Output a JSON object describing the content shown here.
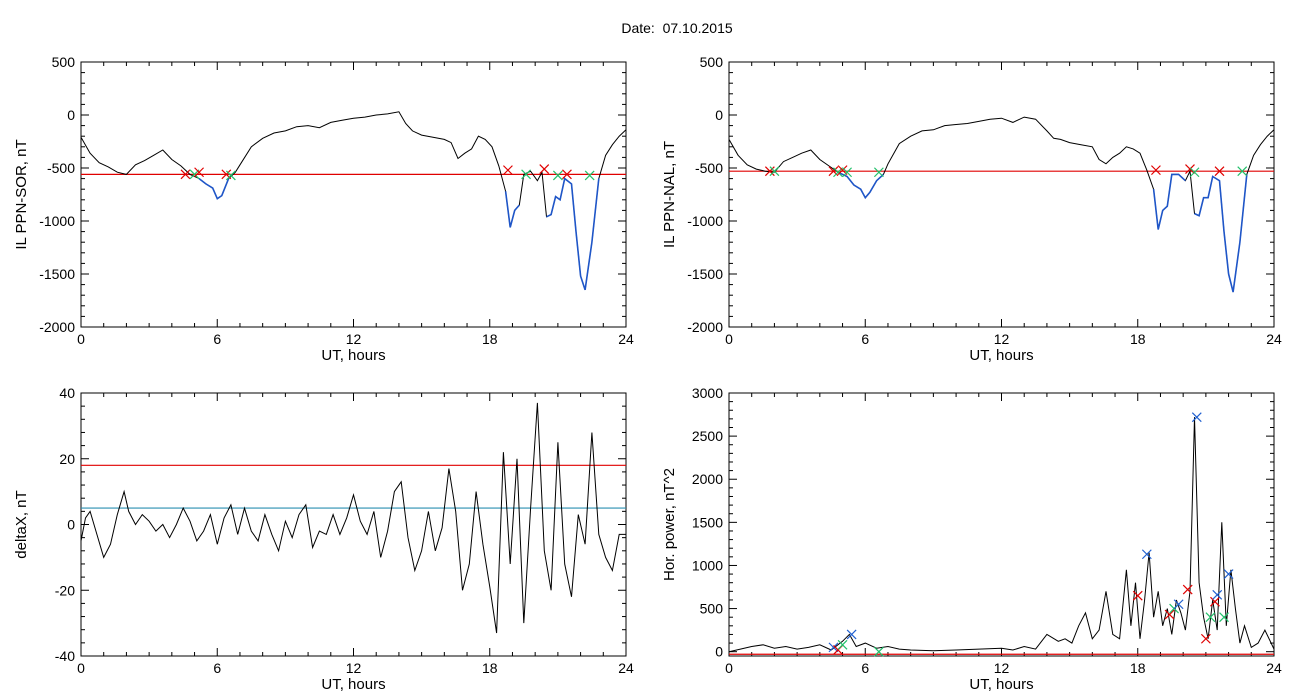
{
  "header": {
    "date_label": "Date:",
    "date_value": "07.10.2015"
  },
  "colors": {
    "trace": "#000000",
    "threshold": "#e00000",
    "event": "#1f56c8",
    "baseline": "#2a8fb0",
    "marker_red": "#e00000",
    "marker_green": "#22c06a",
    "marker_blue": "#2060d0"
  },
  "chart_data": [
    {
      "type": "line",
      "title": "",
      "xlabel": "UT, hours",
      "ylabel": "IL PPN-SOR, nT",
      "xlim": [
        0,
        24
      ],
      "ylim": [
        -2000,
        500
      ],
      "xticks": [
        0,
        6,
        12,
        18,
        24
      ],
      "yticks": [
        500,
        0,
        -500,
        -1000,
        -1500,
        -2000
      ],
      "grid": false,
      "threshold": -560,
      "series": [
        {
          "x": [
            0,
            0.4,
            0.8,
            1.2,
            1.6,
            2.0,
            2.4,
            2.8,
            3.2,
            3.6,
            4.0,
            4.4,
            4.8,
            5.2,
            5.5,
            5.8,
            6.0,
            6.2,
            6.5,
            6.8,
            7.0,
            7.5,
            8.0,
            8.5,
            9.0,
            9.5,
            10.0,
            10.5,
            11.0,
            11.5,
            12.0,
            12.5,
            13.0,
            13.5,
            14.0,
            14.3,
            14.6,
            15.0,
            15.5,
            16.0,
            16.3,
            16.6,
            16.9,
            17.2,
            17.5,
            17.8,
            18.1,
            18.4,
            18.7,
            18.9,
            19.1,
            19.3,
            19.5,
            19.8,
            20.1,
            20.3,
            20.5,
            20.7,
            20.9,
            21.1,
            21.3,
            21.6,
            21.8,
            22.0,
            22.2,
            22.5,
            22.8,
            23.1,
            23.4,
            23.7,
            24.0
          ],
          "y": [
            -210,
            -360,
            -450,
            -490,
            -540,
            -560,
            -470,
            -430,
            -380,
            -330,
            -420,
            -480,
            -560,
            -600,
            -650,
            -690,
            -790,
            -760,
            -600,
            -540,
            -470,
            -300,
            -220,
            -170,
            -150,
            -110,
            -100,
            -120,
            -70,
            -50,
            -30,
            -20,
            0,
            10,
            30,
            -80,
            -150,
            -190,
            -210,
            -230,
            -260,
            -410,
            -360,
            -320,
            -200,
            -230,
            -300,
            -480,
            -720,
            -1060,
            -900,
            -850,
            -560,
            -530,
            -620,
            -540,
            -960,
            -940,
            -770,
            -800,
            -600,
            -650,
            -1100,
            -1520,
            -1650,
            -1200,
            -600,
            -380,
            -280,
            -200,
            -140
          ]
        }
      ],
      "markers": [
        {
          "x": 4.6,
          "y": -560,
          "color": "red"
        },
        {
          "x": 5.0,
          "y": -560,
          "color": "green"
        },
        {
          "x": 5.2,
          "y": -540,
          "color": "red"
        },
        {
          "x": 6.4,
          "y": -560,
          "color": "red"
        },
        {
          "x": 6.6,
          "y": -570,
          "color": "green"
        },
        {
          "x": 18.8,
          "y": -520,
          "color": "red"
        },
        {
          "x": 19.6,
          "y": -560,
          "color": "green"
        },
        {
          "x": 20.4,
          "y": -510,
          "color": "red"
        },
        {
          "x": 21.0,
          "y": -570,
          "color": "green"
        },
        {
          "x": 21.4,
          "y": -560,
          "color": "red"
        },
        {
          "x": 22.4,
          "y": -570,
          "color": "green"
        }
      ]
    },
    {
      "type": "line",
      "title": "",
      "xlabel": "UT, hours",
      "ylabel": "IL PPN-NAL, nT",
      "xlim": [
        0,
        24
      ],
      "ylim": [
        -2000,
        500
      ],
      "xticks": [
        0,
        6,
        12,
        18,
        24
      ],
      "yticks": [
        500,
        0,
        -500,
        -1000,
        -1500,
        -2000
      ],
      "grid": false,
      "threshold": -530,
      "series": [
        {
          "x": [
            0,
            0.4,
            0.8,
            1.2,
            1.6,
            2.0,
            2.4,
            2.8,
            3.2,
            3.6,
            4.0,
            4.4,
            4.8,
            5.2,
            5.5,
            5.8,
            6.0,
            6.2,
            6.5,
            6.8,
            7.0,
            7.5,
            8.0,
            8.5,
            9.0,
            9.5,
            10.0,
            10.5,
            11.0,
            11.5,
            12.0,
            12.5,
            13.0,
            13.5,
            14.0,
            14.3,
            14.6,
            15.0,
            15.5,
            16.0,
            16.3,
            16.6,
            16.9,
            17.2,
            17.5,
            17.8,
            18.1,
            18.4,
            18.7,
            18.9,
            19.1,
            19.3,
            19.5,
            19.8,
            20.1,
            20.3,
            20.5,
            20.7,
            20.9,
            21.1,
            21.3,
            21.6,
            21.8,
            22.0,
            22.2,
            22.5,
            22.8,
            23.1,
            23.4,
            23.7,
            24.0
          ],
          "y": [
            -230,
            -380,
            -470,
            -510,
            -530,
            -540,
            -440,
            -400,
            -360,
            -330,
            -420,
            -480,
            -540,
            -580,
            -660,
            -700,
            -780,
            -730,
            -620,
            -560,
            -460,
            -270,
            -200,
            -150,
            -140,
            -100,
            -90,
            -80,
            -60,
            -40,
            -30,
            -70,
            -20,
            -40,
            -150,
            -220,
            -230,
            -260,
            -280,
            -300,
            -420,
            -460,
            -400,
            -360,
            -300,
            -320,
            -360,
            -520,
            -700,
            -1080,
            -900,
            -860,
            -560,
            -560,
            -620,
            -530,
            -930,
            -950,
            -780,
            -780,
            -580,
            -620,
            -1100,
            -1500,
            -1670,
            -1200,
            -560,
            -380,
            -280,
            -200,
            -140
          ]
        }
      ],
      "markers": [
        {
          "x": 1.8,
          "y": -530,
          "color": "red"
        },
        {
          "x": 2.0,
          "y": -530,
          "color": "green"
        },
        {
          "x": 4.6,
          "y": -530,
          "color": "red"
        },
        {
          "x": 4.8,
          "y": -540,
          "color": "green"
        },
        {
          "x": 5.0,
          "y": -520,
          "color": "red"
        },
        {
          "x": 5.2,
          "y": -540,
          "color": "green"
        },
        {
          "x": 6.6,
          "y": -540,
          "color": "green"
        },
        {
          "x": 18.8,
          "y": -520,
          "color": "red"
        },
        {
          "x": 20.3,
          "y": -510,
          "color": "red"
        },
        {
          "x": 20.5,
          "y": -540,
          "color": "green"
        },
        {
          "x": 21.6,
          "y": -530,
          "color": "red"
        },
        {
          "x": 22.6,
          "y": -530,
          "color": "green"
        }
      ]
    },
    {
      "type": "line",
      "title": "",
      "xlabel": "UT, hours",
      "ylabel": "deltaX, nT",
      "xlim": [
        0,
        24
      ],
      "ylim": [
        -40,
        40
      ],
      "xticks": [
        0,
        6,
        12,
        18,
        24
      ],
      "yticks": [
        40,
        20,
        0,
        -20,
        -40
      ],
      "grid": false,
      "threshold": 18,
      "baseline": 5,
      "series": [
        {
          "x": [
            0,
            0.2,
            0.4,
            0.7,
            1.0,
            1.3,
            1.6,
            1.9,
            2.1,
            2.4,
            2.7,
            3.0,
            3.3,
            3.6,
            3.9,
            4.2,
            4.5,
            4.8,
            5.1,
            5.4,
            5.7,
            6.0,
            6.3,
            6.6,
            6.9,
            7.2,
            7.5,
            7.8,
            8.1,
            8.4,
            8.7,
            9.0,
            9.3,
            9.6,
            9.9,
            10.2,
            10.5,
            10.8,
            11.1,
            11.4,
            11.7,
            12.0,
            12.3,
            12.6,
            12.9,
            13.2,
            13.5,
            13.8,
            14.1,
            14.4,
            14.7,
            15.0,
            15.3,
            15.6,
            15.9,
            16.2,
            16.5,
            16.8,
            17.1,
            17.4,
            17.7,
            18.0,
            18.3,
            18.6,
            18.9,
            19.2,
            19.5,
            19.8,
            20.1,
            20.4,
            20.7,
            21.0,
            21.3,
            21.6,
            21.9,
            22.2,
            22.5,
            22.8,
            23.1,
            23.4,
            23.7,
            24.0
          ],
          "y": [
            -5,
            2,
            4,
            -3,
            -10,
            -6,
            3,
            10,
            4,
            0,
            3,
            1,
            -2,
            0,
            -4,
            0,
            5,
            1,
            -5,
            -2,
            3,
            -6,
            2,
            6,
            -3,
            5,
            -2,
            -5,
            3,
            -3,
            -8,
            1,
            -4,
            3,
            6,
            -7,
            -2,
            -3,
            3,
            -3,
            2,
            9,
            1,
            -3,
            4,
            -10,
            -2,
            10,
            13,
            -4,
            -14,
            -8,
            4,
            -8,
            -1,
            17,
            4,
            -20,
            -12,
            10,
            -6,
            -19,
            -33,
            22,
            -12,
            20,
            -30,
            5,
            37,
            -8,
            -20,
            25,
            -12,
            -22,
            3,
            -6,
            28,
            -3,
            -10,
            -14,
            -3,
            -3
          ]
        }
      ],
      "markers": []
    },
    {
      "type": "line",
      "title": "",
      "xlabel": "UT, hours",
      "ylabel": "Hor. power, nT^2",
      "xlim": [
        0,
        24
      ],
      "ylim": [
        -50,
        3000
      ],
      "xticks": [
        0,
        6,
        12,
        18,
        24
      ],
      "yticks": [
        3000,
        2500,
        2000,
        1500,
        1000,
        500,
        0
      ],
      "grid": false,
      "threshold": -30,
      "series": [
        {
          "x": [
            0,
            0.5,
            1.0,
            1.5,
            2.0,
            2.5,
            3.0,
            3.5,
            4.0,
            4.5,
            5.0,
            5.3,
            5.6,
            6.0,
            6.5,
            7.0,
            7.5,
            8.0,
            9.0,
            10.0,
            11.0,
            12.0,
            12.5,
            13.0,
            13.5,
            14.0,
            14.5,
            14.8,
            15.1,
            15.4,
            15.7,
            16.0,
            16.3,
            16.6,
            16.9,
            17.2,
            17.5,
            17.7,
            17.9,
            18.1,
            18.3,
            18.5,
            18.7,
            18.9,
            19.1,
            19.3,
            19.5,
            19.7,
            19.9,
            20.1,
            20.3,
            20.5,
            20.7,
            20.9,
            21.1,
            21.3,
            21.5,
            21.7,
            21.9,
            22.1,
            22.3,
            22.5,
            22.7,
            23.0,
            23.3,
            23.6,
            24.0
          ],
          "y": [
            0,
            30,
            60,
            80,
            40,
            60,
            30,
            50,
            80,
            20,
            120,
            200,
            60,
            100,
            40,
            60,
            30,
            20,
            10,
            20,
            30,
            40,
            20,
            60,
            30,
            200,
            120,
            150,
            100,
            300,
            450,
            150,
            250,
            700,
            200,
            150,
            950,
            300,
            800,
            150,
            600,
            1150,
            400,
            700,
            300,
            500,
            200,
            600,
            450,
            250,
            700,
            2720,
            800,
            400,
            150,
            600,
            250,
            1500,
            300,
            950,
            500,
            100,
            300,
            50,
            100,
            250,
            30
          ]
        }
      ],
      "markers": [
        {
          "x": 4.6,
          "y": 50,
          "color": "blue"
        },
        {
          "x": 4.8,
          "y": 20,
          "color": "red"
        },
        {
          "x": 5.0,
          "y": 80,
          "color": "green"
        },
        {
          "x": 5.4,
          "y": 200,
          "color": "blue"
        },
        {
          "x": 6.6,
          "y": 0,
          "color": "green"
        },
        {
          "x": 18.0,
          "y": 650,
          "color": "red"
        },
        {
          "x": 18.4,
          "y": 1130,
          "color": "blue"
        },
        {
          "x": 19.4,
          "y": 430,
          "color": "red"
        },
        {
          "x": 19.6,
          "y": 500,
          "color": "green"
        },
        {
          "x": 19.8,
          "y": 550,
          "color": "blue"
        },
        {
          "x": 20.2,
          "y": 720,
          "color": "red"
        },
        {
          "x": 20.6,
          "y": 2720,
          "color": "blue"
        },
        {
          "x": 21.0,
          "y": 150,
          "color": "red"
        },
        {
          "x": 21.2,
          "y": 400,
          "color": "green"
        },
        {
          "x": 21.4,
          "y": 580,
          "color": "red"
        },
        {
          "x": 21.5,
          "y": 660,
          "color": "blue"
        },
        {
          "x": 21.8,
          "y": 400,
          "color": "green"
        },
        {
          "x": 22.0,
          "y": 900,
          "color": "blue"
        }
      ]
    }
  ]
}
